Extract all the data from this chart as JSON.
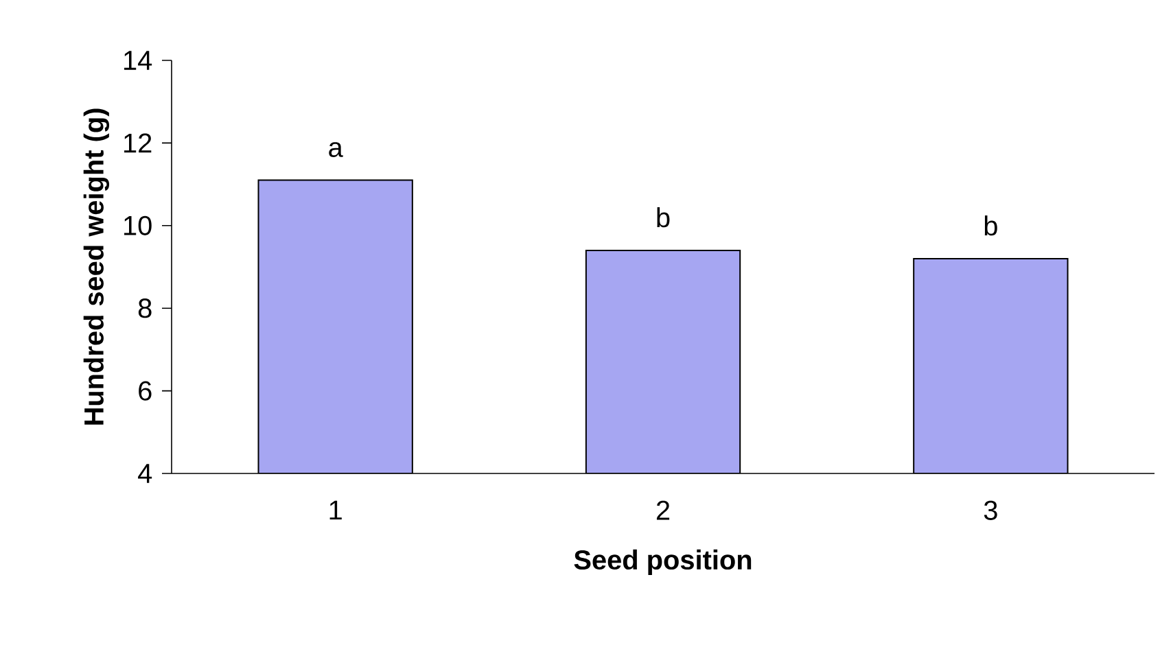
{
  "chart_data": {
    "type": "bar",
    "xlabel": "Seed position",
    "ylabel": "Hundred seed weight (g)",
    "categories": [
      "1",
      "2",
      "3"
    ],
    "values": [
      11.1,
      9.4,
      9.2
    ],
    "color": "#a6a6f2",
    "ylim": [
      4,
      14
    ],
    "yticks": [
      4,
      6,
      8,
      10,
      12,
      14
    ],
    "annotations": [
      {
        "text": "a",
        "x": "1",
        "y": 11.1
      },
      {
        "text": "b",
        "x": "2",
        "y": 9.4
      },
      {
        "text": "b",
        "x": "3",
        "y": 9.2
      }
    ]
  }
}
